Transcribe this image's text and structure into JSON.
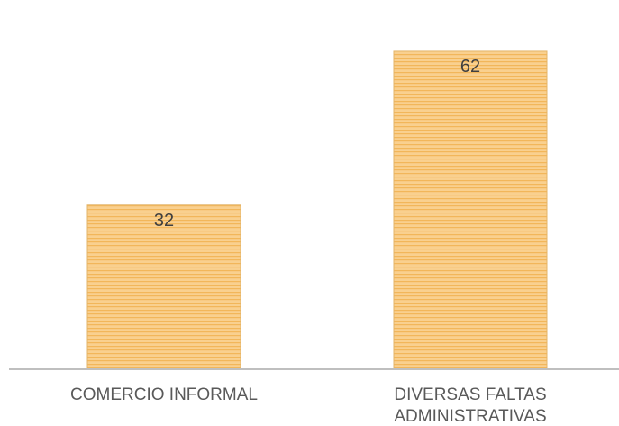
{
  "chart_data": {
    "type": "bar",
    "categories": [
      "COMERCIO INFORMAL",
      "DIVERSAS FALTAS ADMINISTRATIVAS"
    ],
    "category_lines": [
      [
        "COMERCIO INFORMAL"
      ],
      [
        "DIVERSAS FALTAS",
        "ADMINISTRATIVAS"
      ]
    ],
    "values": [
      32,
      62
    ],
    "title": "",
    "xlabel": "",
    "ylabel": "",
    "ylim": [
      0,
      72
    ],
    "grid": false,
    "legend": "none",
    "data_labels": true,
    "colors": {
      "bar_fill": "#F9D08F",
      "bar_stripe": "#F2B65A",
      "bar_border": "#E3B469",
      "axis": "#BFBFBF",
      "value_text": "#404040",
      "category_text": "#595959"
    }
  }
}
